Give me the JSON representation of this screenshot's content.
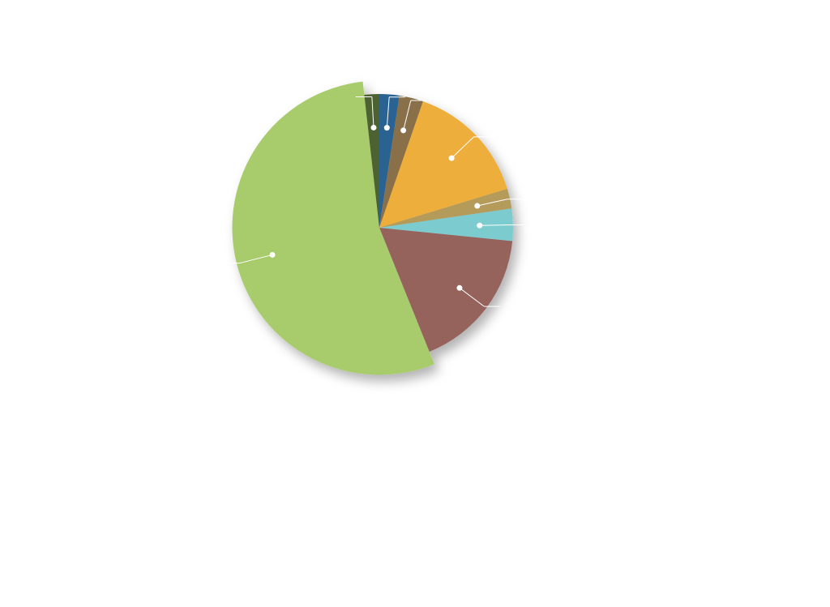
{
  "chart_data": {
    "type": "pie",
    "values": [
      2.4,
      2.9,
      15,
      2.4,
      3.9,
      17.3,
      54.3,
      1.8
    ],
    "colors": [
      "#2c6291",
      "#8a7048",
      "#edae3a",
      "#b59b5a",
      "#7ccbcf",
      "#96625c",
      "#a8cc6c",
      "#4d6233"
    ],
    "radius_scale": [
      1,
      1,
      1,
      1,
      1,
      1,
      1.1,
      1
    ]
  }
}
